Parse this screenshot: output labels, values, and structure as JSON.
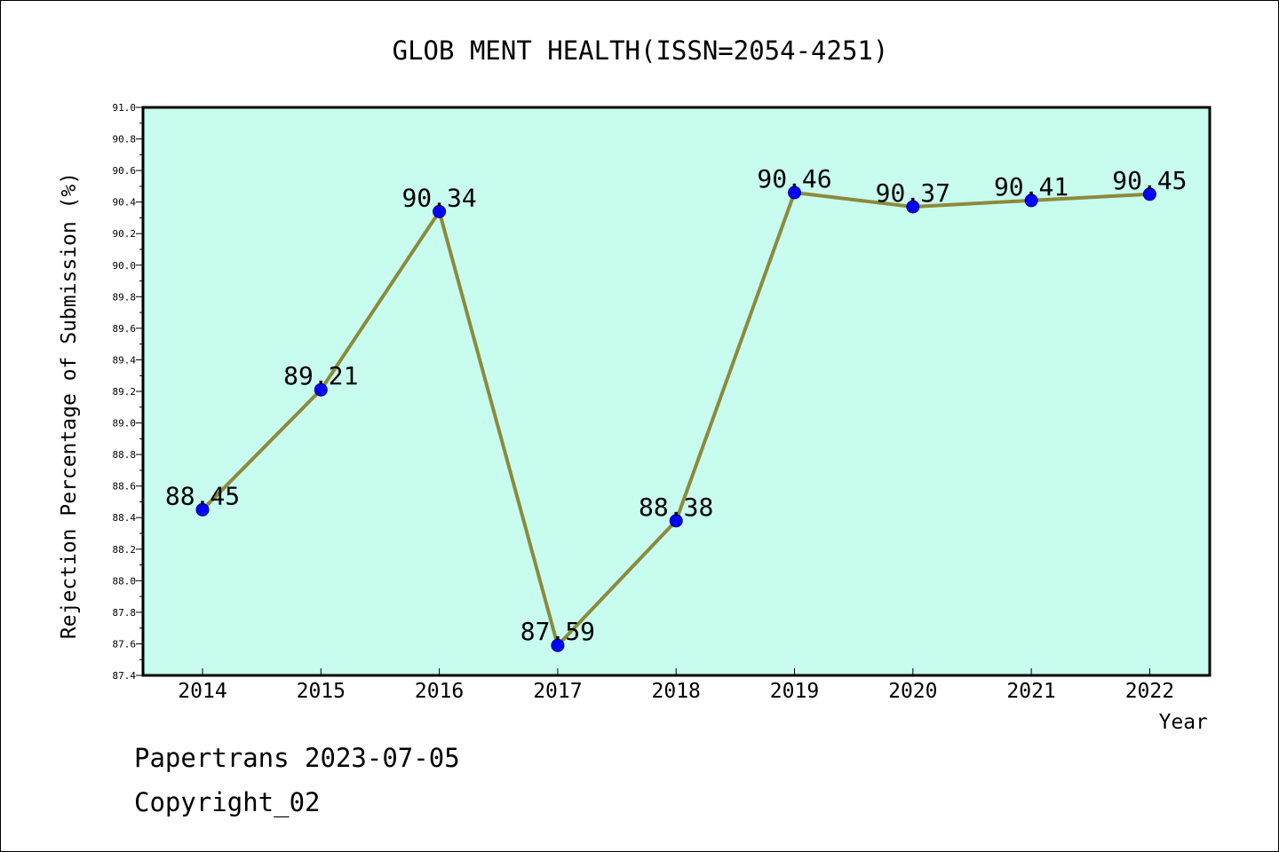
{
  "chart_data": {
    "type": "line",
    "title": "GLOB MENT HEALTH(ISSN=2054-4251)",
    "xlabel": "Year",
    "ylabel": "Rejection Percentage of Submission (%)",
    "categories": [
      "2014",
      "2015",
      "2016",
      "2017",
      "2018",
      "2019",
      "2020",
      "2021",
      "2022"
    ],
    "values": [
      88.45,
      89.21,
      90.34,
      87.59,
      88.38,
      90.46,
      90.37,
      90.41,
      90.45
    ],
    "data_labels": [
      "88.45",
      "89.21",
      "90.34",
      "87.59",
      "88.38",
      "90.46",
      "90.37",
      "90.41",
      "90.45"
    ],
    "ylim": [
      87.4,
      91.0
    ],
    "yticks": [
      "87.4",
      "87.6",
      "87.8",
      "88.0",
      "88.2",
      "88.4",
      "88.6",
      "88.8",
      "89.0",
      "89.2",
      "89.4",
      "89.6",
      "89.8",
      "90.0",
      "90.2",
      "90.4",
      "90.6",
      "90.8",
      "91.0"
    ],
    "grid": false,
    "colors": {
      "plot_background": "#c8fcef",
      "line": "#8b8b3c",
      "marker_fill": "#0000ff",
      "marker_edge": "#00008b"
    }
  },
  "footer": {
    "source": "Papertrans 2023-07-05",
    "copyright": "Copyright_02"
  }
}
